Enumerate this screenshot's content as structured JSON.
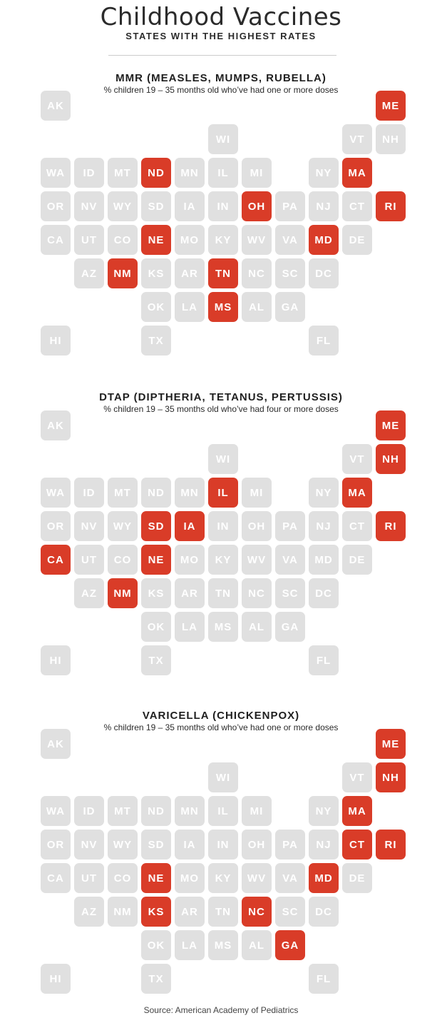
{
  "header": {
    "title": "Childhood Vaccines",
    "subtitle": "STATES WITH THE HIGHEST RATES"
  },
  "colors": {
    "highlight": "#d93c28",
    "inactive": "#e0e0e0"
  },
  "sections": [
    {
      "title": "MMR (MEASLES, MUMPS, RUBELLA)",
      "note": "% children 19 – 35 months old who’ve had one or more doses",
      "highlighted": [
        "ME",
        "ND",
        "MA",
        "OH",
        "RI",
        "NE",
        "MD",
        "NM",
        "TN",
        "MS"
      ]
    },
    {
      "title": "DTAP (DIPTHERIA, TETANUS, PERTUSSIS)",
      "note": "% children 19 – 35 months old who’ve had four or more doses",
      "highlighted": [
        "ME",
        "NH",
        "IL",
        "MA",
        "SD",
        "IA",
        "RI",
        "CA",
        "NE",
        "NM"
      ]
    },
    {
      "title": "VARICELLA (CHICKENPOX)",
      "note": "% children 19 – 35 months old who’ve had one or more doses",
      "highlighted": [
        "ME",
        "NH",
        "MA",
        "CT",
        "RI",
        "NE",
        "MD",
        "KS",
        "NC",
        "GA"
      ]
    }
  ],
  "grid": [
    [
      "AK",
      "",
      "",
      "",
      "",
      "",
      "",
      "",
      "",
      "",
      "ME"
    ],
    [
      "",
      "",
      "",
      "",
      "",
      "WI",
      "",
      "",
      "",
      "VT",
      "NH"
    ],
    [
      "WA",
      "ID",
      "MT",
      "ND",
      "MN",
      "IL",
      "MI",
      "",
      "NY",
      "MA",
      ""
    ],
    [
      "OR",
      "NV",
      "WY",
      "SD",
      "IA",
      "IN",
      "OH",
      "PA",
      "NJ",
      "CT",
      "RI"
    ],
    [
      "CA",
      "UT",
      "CO",
      "NE",
      "MO",
      "KY",
      "WV",
      "VA",
      "MD",
      "DE",
      ""
    ],
    [
      "",
      "AZ",
      "NM",
      "KS",
      "AR",
      "TN",
      "NC",
      "SC",
      "DC",
      "",
      ""
    ],
    [
      "",
      "",
      "",
      "OK",
      "LA",
      "MS",
      "AL",
      "GA",
      "",
      "",
      ""
    ],
    [
      "HI",
      "",
      "",
      "TX",
      "",
      "",
      "",
      "",
      "FL",
      "",
      ""
    ]
  ],
  "source": "Source: American Academy of Pediatrics"
}
